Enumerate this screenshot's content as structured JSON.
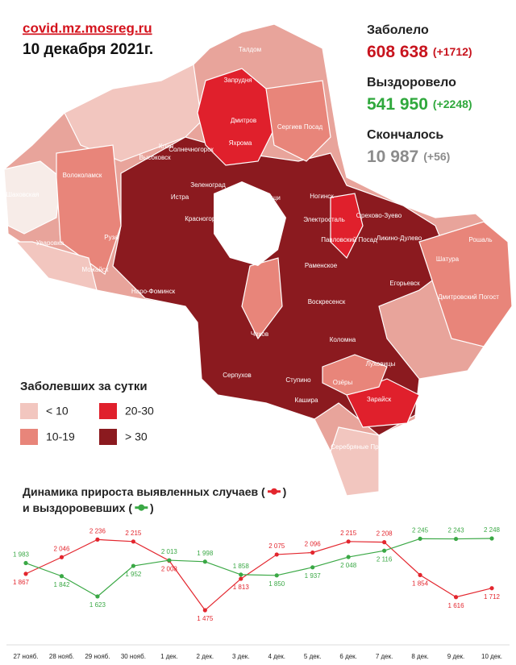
{
  "header": {
    "site": "covid.mz.mosreg.ru",
    "date": "10 декабря 2021г."
  },
  "stats": [
    {
      "label": "Заболело",
      "value": "608 638",
      "delta": "(+1712)",
      "color": "#c8141e"
    },
    {
      "label": "Выздоровело",
      "value": "541 950",
      "delta": "(+2248)",
      "color": "#2fa83c"
    },
    {
      "label": "Скончалось",
      "value": "10 987",
      "delta": "(+56)",
      "color": "#8c8c8c"
    }
  ],
  "map": {
    "labels": [
      "Талдом",
      "Запрудня",
      "Дмитров",
      "Яхрома",
      "Сергиев Посад",
      "Клин",
      "Высоковск",
      "Солнечногорск",
      "Шаховская",
      "Волоколамск",
      "Истра",
      "Зеленоград",
      "Мытищи",
      "Ногинск",
      "Электросталь",
      "Орехово-Зуево",
      "Павловский Посад",
      "Ликино-Дулево",
      "Рошаль",
      "Шатура",
      "Красногорск",
      "Руза",
      "Можайск",
      "Уваровка",
      "Наро-Фоминск",
      "Раменское",
      "Егорьевск",
      "Воскресенск",
      "Дмитровский Погост",
      "Чехов",
      "Коломна",
      "Серпухов",
      "Ступино",
      "Кашира",
      "Луховицы",
      "Озёры",
      "Зарайск",
      "Серебряные Пруды"
    ]
  },
  "legend": {
    "title": "Заболевших за сутки",
    "items": [
      {
        "label": "< 10",
        "color": "#f2c6bf"
      },
      {
        "label": "20-30",
        "color": "#e0202c"
      },
      {
        "label": "10-19",
        "color": "#e8857a"
      },
      {
        "label": "> 30",
        "color": "#8b1a1f"
      }
    ]
  },
  "chart_data": {
    "type": "line",
    "title": [
      "Динамика прироста выявленных случаев (",
      ")",
      "и выздоровевших (",
      ")"
    ],
    "categories": [
      "27 нояб.",
      "28 нояб.",
      "29 нояб.",
      "30 нояб.",
      "1 дек.",
      "2 дек.",
      "3 дек.",
      "4 дек.",
      "5 дек.",
      "6 дек.",
      "7 дек.",
      "8 дек.",
      "9 дек.",
      "10 дек."
    ],
    "series": [
      {
        "color": "#e3262e",
        "values": [
          1867,
          2046,
          2236,
          2215,
          2008,
          1475,
          1813,
          2075,
          2096,
          2215,
          2208,
          1854,
          1616,
          1712
        ],
        "value_labels": [
          "1 867",
          "2 046",
          "2 236",
          "2 215",
          "2 008",
          "1 475",
          "1 813",
          "2 075",
          "2 096",
          "2 215",
          "2 208",
          "1 854",
          "1 616",
          "1 712"
        ]
      },
      {
        "color": "#3aa845",
        "values": [
          1983,
          1842,
          1623,
          1952,
          2013,
          1998,
          1858,
          1850,
          1937,
          2048,
          2116,
          2245,
          2243,
          2248
        ],
        "value_labels": [
          "1 983",
          "1 842",
          "1 623",
          "1 952",
          "2 013",
          "1 998",
          "1 858",
          "1 850",
          "1 937",
          "2 048",
          "2 116",
          "2 245",
          "2 243",
          "2 248"
        ]
      }
    ]
  }
}
